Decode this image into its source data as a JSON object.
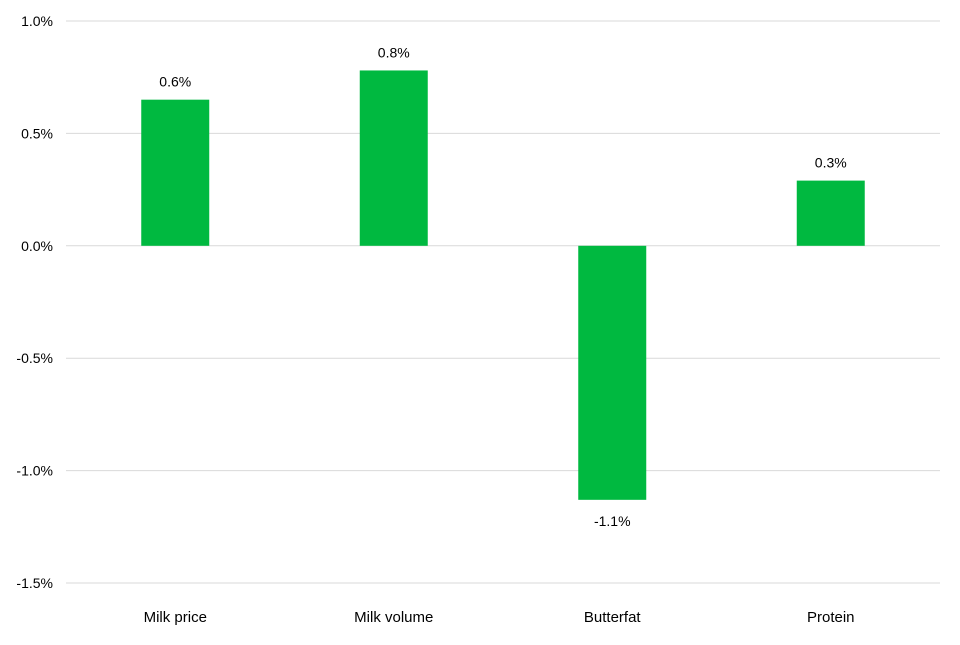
{
  "chart_data": {
    "type": "bar",
    "title": "",
    "xlabel": "",
    "ylabel": "",
    "categories": [
      "Milk price",
      "Milk volume",
      "Butterfat",
      "Protein"
    ],
    "values": [
      0.65,
      0.78,
      -1.13,
      0.29
    ],
    "data_labels": [
      "0.6%",
      "0.8%",
      "-1.1%",
      "0.3%"
    ],
    "ylim": [
      -1.5,
      1.0
    ],
    "yticks": [
      1.0,
      0.5,
      0.0,
      -0.5,
      -1.0,
      -1.5
    ],
    "ytick_labels": [
      "1.0%",
      "0.5%",
      "0.0%",
      "-0.5%",
      "-1.0%",
      "-1.5%"
    ],
    "bar_color": "#00b940",
    "grid": true,
    "legend": "none"
  }
}
